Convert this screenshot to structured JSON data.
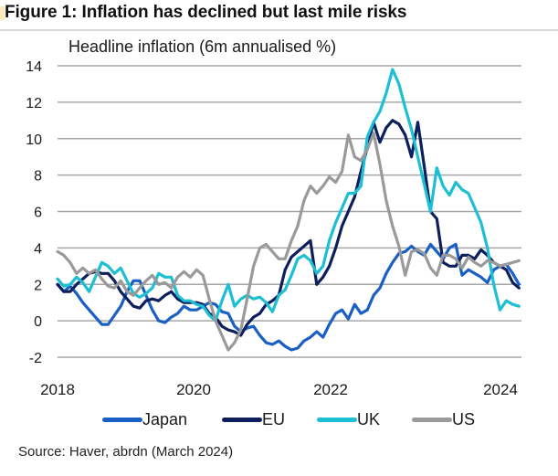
{
  "header": {
    "title": "Figure 1: Inflation has declined but last mile risks"
  },
  "footer": {
    "source": "Source: Haver, abrdn (March 2024)"
  },
  "chart_data": {
    "type": "line",
    "title": "Figure 1: Inflation has declined but last mile risks",
    "subtitle": "Headline inflation (6m annualised %)",
    "xlabel": "",
    "ylabel": "",
    "x_start": "2018-01",
    "x_frequency": "monthly",
    "xlim": [
      2018.0,
      2024.08
    ],
    "ylim": [
      -2,
      14
    ],
    "yticks": [
      -2,
      0,
      2,
      4,
      6,
      8,
      10,
      12,
      14
    ],
    "xticks": [
      {
        "label": "2018",
        "value": 2018
      },
      {
        "label": "2020",
        "value": 2020
      },
      {
        "label": "2022",
        "value": 2022
      },
      {
        "label": "2024",
        "value": 2024
      }
    ],
    "grid": "horizontal",
    "legend_position": "bottom",
    "series": [
      {
        "name": "Japan",
        "color": "#1a5fc4",
        "values": [
          2.0,
          1.6,
          1.9,
          1.5,
          1.0,
          0.6,
          0.2,
          -0.2,
          -0.2,
          0.3,
          0.8,
          1.6,
          2.2,
          2.2,
          1.4,
          0.6,
          0.0,
          -0.1,
          0.2,
          0.4,
          0.8,
          0.6,
          0.6,
          0.8,
          1.0,
          0.9,
          0.5,
          0.4,
          -0.3,
          -0.6,
          -0.4,
          -0.3,
          -0.8,
          -1.2,
          -1.3,
          -1.1,
          -1.4,
          -1.6,
          -1.5,
          -1.1,
          -0.9,
          -0.6,
          -0.9,
          -0.2,
          0.4,
          0.6,
          0.1,
          0.9,
          0.4,
          0.6,
          1.4,
          1.8,
          2.6,
          3.2,
          3.7,
          3.8,
          4.1,
          3.8,
          3.6,
          4.2,
          3.8,
          3.4,
          4.0,
          4.2,
          2.5,
          2.8,
          2.6,
          2.4,
          2.1,
          2.8,
          3.0,
          3.1,
          2.6,
          2.0
        ]
      },
      {
        "name": "EU",
        "color": "#0d1f5c",
        "values": [
          2.0,
          1.6,
          1.6,
          2.0,
          2.3,
          2.6,
          2.7,
          2.6,
          2.6,
          2.2,
          1.6,
          1.2,
          0.8,
          0.7,
          1.1,
          1.2,
          1.1,
          1.4,
          1.6,
          1.2,
          1.0,
          1.0,
          1.0,
          0.9,
          0.4,
          0.2,
          -0.3,
          -0.5,
          -0.6,
          -0.8,
          -0.2,
          0.2,
          0.4,
          0.9,
          1.1,
          1.4,
          2.8,
          3.5,
          3.8,
          4.1,
          4.4,
          2.0,
          2.4,
          3.0,
          4.0,
          5.2,
          6.0,
          6.8,
          8.2,
          9.5,
          10.9,
          9.8,
          10.6,
          11.0,
          10.8,
          10.2,
          9.0,
          10.9,
          8.5,
          6.0,
          5.6,
          3.2,
          3.0,
          3.0,
          3.6,
          3.6,
          3.4,
          3.9,
          3.6,
          3.2,
          3.0,
          2.8,
          2.1,
          1.8
        ]
      },
      {
        "name": "UK",
        "color": "#1cbfd4",
        "values": [
          2.3,
          1.9,
          2.0,
          2.4,
          2.1,
          1.6,
          2.4,
          3.2,
          3.0,
          2.6,
          2.9,
          2.2,
          1.5,
          1.3,
          1.5,
          1.8,
          2.6,
          2.4,
          2.4,
          1.4,
          1.1,
          1.1,
          0.9,
          0.8,
          0.3,
          0.0,
          1.1,
          2.0,
          0.8,
          1.2,
          1.4,
          1.2,
          1.3,
          1.0,
          0.5,
          1.4,
          1.7,
          2.5,
          3.4,
          3.6,
          3.3,
          2.6,
          3.0,
          4.4,
          5.4,
          6.2,
          7.0,
          7.0,
          7.4,
          10.1,
          10.9,
          11.5,
          12.5,
          13.8,
          13.0,
          11.7,
          10.5,
          9.0,
          7.5,
          6.0,
          8.4,
          7.4,
          6.9,
          7.6,
          7.2,
          7.0,
          6.2,
          5.4,
          4.0,
          2.0,
          0.6,
          1.1,
          0.9,
          0.8
        ]
      },
      {
        "name": "US",
        "color": "#9a9a9a",
        "values": [
          3.8,
          3.6,
          3.2,
          2.6,
          2.9,
          2.6,
          2.8,
          2.3,
          1.9,
          1.8,
          2.2,
          1.6,
          1.4,
          1.8,
          2.2,
          2.5,
          2.0,
          2.1,
          1.8,
          2.4,
          2.7,
          2.4,
          2.8,
          2.5,
          1.2,
          0.0,
          -0.8,
          -1.6,
          -1.2,
          -0.5,
          1.2,
          3.0,
          4.0,
          4.2,
          3.8,
          3.4,
          3.4,
          4.4,
          5.2,
          6.6,
          7.4,
          7.0,
          7.4,
          7.9,
          7.6,
          8.2,
          10.2,
          9.0,
          8.8,
          9.4,
          10.3,
          8.6,
          6.6,
          5.2,
          4.1,
          2.5,
          3.8,
          3.9,
          3.7,
          2.9,
          2.5,
          3.6,
          3.6,
          3.4,
          2.9,
          3.5,
          3.2,
          3.0,
          3.3,
          3.2,
          3.0,
          3.1,
          3.2,
          3.3
        ]
      }
    ]
  }
}
